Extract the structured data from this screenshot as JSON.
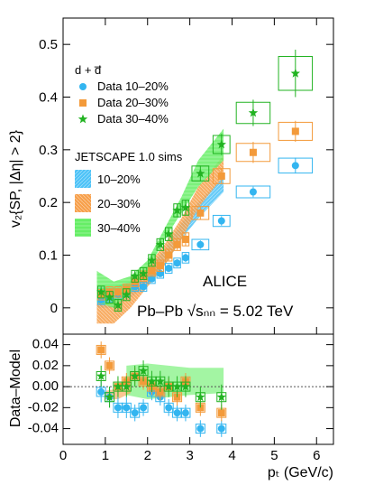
{
  "colors": {
    "s10": "#33b5f0",
    "s20": "#f39a3a",
    "s30": "#22b322",
    "band10": "#4fc3f7",
    "band20": "#f7a04b",
    "band30": "#66ee66"
  },
  "labels": {
    "y_top": "v₂{SP, |Δη| > 2}",
    "y_bottom": "Data–Model",
    "x": "pₜ (GeV/c)",
    "particle": "d + d̅",
    "alice": "ALICE",
    "system": "Pb–Pb  √sₙₙ = 5.02 TeV",
    "model_title": "JETSCAPE 1.0 sims"
  },
  "legend": {
    "data": [
      {
        "label": "Data 10–20%",
        "marker": "circle",
        "color": "s10"
      },
      {
        "label": "Data 20–30%",
        "marker": "square",
        "color": "s20"
      },
      {
        "label": "Data 30–40%",
        "marker": "star",
        "color": "s30"
      }
    ],
    "model": [
      {
        "label": "10–20%",
        "color": "band10"
      },
      {
        "label": "20–30%",
        "color": "band20"
      },
      {
        "label": "30–40%",
        "color": "band30"
      }
    ]
  },
  "chart_data": [
    {
      "type": "scatter",
      "panel": "top",
      "xlabel": "pₜ (GeV/c)",
      "ylabel": "v₂{SP, |Δη| > 2}",
      "xlim": [
        0,
        6.4
      ],
      "ylim": [
        -0.05,
        0.55
      ],
      "yticks": [
        0,
        0.1,
        0.2,
        0.3,
        0.4,
        0.5
      ],
      "xticks": [
        0,
        1,
        2,
        3,
        4,
        5,
        6
      ],
      "series": [
        {
          "name": "Data 10–20%",
          "color": "s10",
          "marker": "circle",
          "x": [
            0.9,
            1.1,
            1.3,
            1.5,
            1.7,
            1.9,
            2.1,
            2.3,
            2.5,
            2.7,
            2.9,
            3.25,
            3.75,
            4.5,
            5.5
          ],
          "y": [
            0.015,
            0.02,
            0.025,
            0.03,
            0.04,
            0.04,
            0.055,
            0.065,
            0.075,
            0.085,
            0.095,
            0.12,
            0.165,
            0.22,
            0.27
          ],
          "xerr": [
            0.1,
            0.1,
            0.1,
            0.1,
            0.1,
            0.1,
            0.1,
            0.1,
            0.1,
            0.1,
            0.1,
            0.25,
            0.25,
            0.5,
            0.5
          ],
          "yerr": [
            0.006,
            0.006,
            0.006,
            0.006,
            0.006,
            0.006,
            0.006,
            0.006,
            0.007,
            0.007,
            0.008,
            0.008,
            0.009,
            0.01,
            0.015
          ]
        },
        {
          "name": "Data 20–30%",
          "color": "s20",
          "marker": "square",
          "x": [
            0.9,
            1.1,
            1.3,
            1.5,
            1.7,
            1.9,
            2.1,
            2.3,
            2.5,
            2.7,
            2.9,
            3.25,
            3.75,
            4.5,
            5.5
          ],
          "y": [
            0.025,
            0.03,
            0.03,
            0.035,
            0.05,
            0.06,
            0.07,
            0.08,
            0.1,
            0.12,
            0.13,
            0.18,
            0.25,
            0.295,
            0.335
          ],
          "xerr": [
            0.1,
            0.1,
            0.1,
            0.1,
            0.1,
            0.1,
            0.1,
            0.1,
            0.1,
            0.1,
            0.1,
            0.25,
            0.25,
            0.5,
            0.5
          ],
          "yerr": [
            0.008,
            0.008,
            0.008,
            0.008,
            0.008,
            0.008,
            0.008,
            0.009,
            0.01,
            0.01,
            0.012,
            0.012,
            0.015,
            0.02,
            0.02
          ]
        },
        {
          "name": "Data 30–40%",
          "color": "s30",
          "marker": "star",
          "x": [
            0.9,
            1.1,
            1.3,
            1.5,
            1.7,
            1.9,
            2.1,
            2.3,
            2.5,
            2.7,
            2.9,
            3.25,
            3.75,
            4.5,
            5.5
          ],
          "y": [
            0.03,
            0.02,
            0.005,
            0.025,
            0.06,
            0.065,
            0.09,
            0.12,
            0.14,
            0.185,
            0.19,
            0.255,
            0.31,
            0.37,
            0.445
          ],
          "xerr": [
            0.1,
            0.1,
            0.1,
            0.1,
            0.1,
            0.1,
            0.1,
            0.1,
            0.1,
            0.1,
            0.1,
            0.25,
            0.25,
            0.5,
            0.5
          ],
          "yerr": [
            0.01,
            0.01,
            0.01,
            0.01,
            0.01,
            0.01,
            0.01,
            0.01,
            0.012,
            0.012,
            0.015,
            0.015,
            0.02,
            0.025,
            0.045
          ]
        }
      ],
      "bands": [
        {
          "name": "10–20%",
          "color": "band10",
          "x": [
            0.8,
            1.2,
            1.6,
            2.0,
            2.4,
            2.8,
            3.2,
            3.8
          ],
          "low": [
            0.0,
            0.0,
            0.02,
            0.045,
            0.08,
            0.13,
            0.17,
            0.22
          ],
          "high": [
            0.04,
            0.04,
            0.05,
            0.075,
            0.11,
            0.16,
            0.2,
            0.25
          ]
        },
        {
          "name": "20–30%",
          "color": "band20",
          "x": [
            0.8,
            1.2,
            1.6,
            2.0,
            2.4,
            2.8,
            3.2,
            3.8
          ],
          "low": [
            -0.03,
            -0.03,
            0.0,
            0.04,
            0.08,
            0.13,
            0.19,
            0.25
          ],
          "high": [
            0.03,
            0.03,
            0.05,
            0.08,
            0.12,
            0.17,
            0.23,
            0.29
          ]
        },
        {
          "name": "30–40%",
          "color": "band30",
          "x": [
            0.8,
            1.2,
            1.6,
            2.0,
            2.4,
            2.8,
            3.2,
            3.8
          ],
          "low": [
            0.01,
            0.0,
            0.03,
            0.07,
            0.13,
            0.18,
            0.23,
            0.28
          ],
          "high": [
            0.07,
            0.05,
            0.06,
            0.09,
            0.15,
            0.21,
            0.28,
            0.34
          ]
        }
      ]
    },
    {
      "type": "scatter",
      "panel": "bottom",
      "xlabel": "pₜ (GeV/c)",
      "ylabel": "Data–Model",
      "xlim": [
        0,
        6.4
      ],
      "ylim": [
        -0.055,
        0.05
      ],
      "yticks": [
        -0.04,
        -0.02,
        0.0,
        0.02,
        0.04
      ],
      "xticks": [
        0,
        1,
        2,
        3,
        4,
        5,
        6
      ],
      "series": [
        {
          "name": "Data 10–20%",
          "color": "s10",
          "marker": "circle",
          "x": [
            0.9,
            1.1,
            1.3,
            1.5,
            1.7,
            1.9,
            2.1,
            2.3,
            2.5,
            2.7,
            2.9,
            3.25,
            3.75
          ],
          "y": [
            -0.005,
            -0.01,
            -0.02,
            -0.02,
            -0.025,
            -0.02,
            -0.005,
            -0.01,
            -0.02,
            -0.025,
            -0.025,
            -0.04,
            -0.04
          ],
          "yerr": [
            0.01,
            0.01,
            0.01,
            0.01,
            0.008,
            0.008,
            0.008,
            0.008,
            0.008,
            0.008,
            0.008,
            0.008,
            0.008
          ]
        },
        {
          "name": "Data 20–30%",
          "color": "s20",
          "marker": "square",
          "x": [
            0.9,
            1.1,
            1.3,
            1.5,
            1.7,
            1.9,
            2.1,
            2.3,
            2.5,
            2.7,
            2.9,
            3.25,
            3.75
          ],
          "y": [
            0.035,
            0.02,
            0.0,
            0.005,
            0.01,
            0.005,
            0.0,
            -0.005,
            0.0,
            -0.01,
            0.005,
            -0.02,
            -0.025
          ],
          "yerr": [
            0.008,
            0.008,
            0.008,
            0.008,
            0.008,
            0.008,
            0.008,
            0.008,
            0.008,
            0.008,
            0.008,
            0.008,
            0.008
          ]
        },
        {
          "name": "Data 30–40%",
          "color": "s30",
          "marker": "star",
          "x": [
            0.9,
            1.1,
            1.3,
            1.5,
            1.7,
            1.9,
            2.1,
            2.3,
            2.5,
            2.7,
            2.9,
            3.25,
            3.75
          ],
          "y": [
            0.01,
            -0.01,
            0.0,
            0.0,
            0.01,
            0.015,
            0.005,
            0.005,
            0.0,
            0.0,
            0.0,
            -0.01,
            -0.01
          ],
          "yerr": [
            0.01,
            0.01,
            0.01,
            0.01,
            0.01,
            0.01,
            0.01,
            0.01,
            0.01,
            0.01,
            0.01,
            0.01,
            0.012
          ]
        }
      ]
    }
  ]
}
